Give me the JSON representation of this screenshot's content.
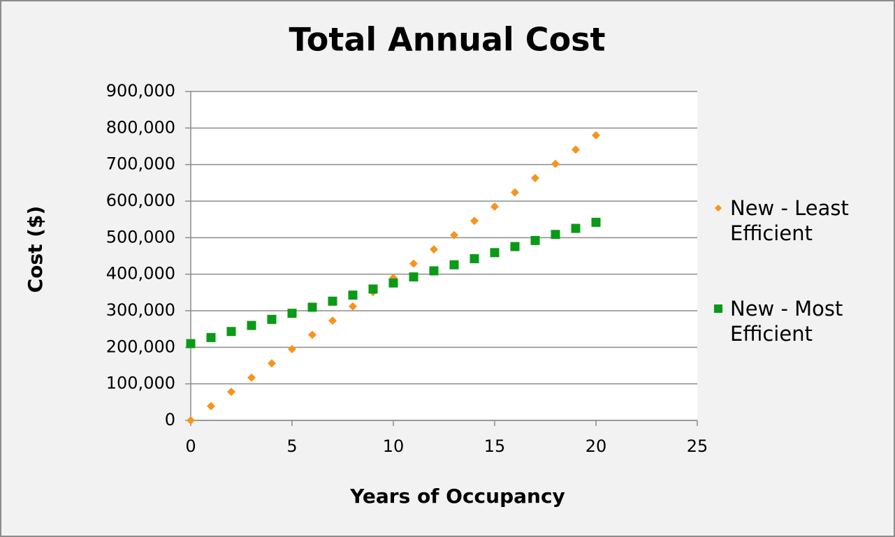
{
  "chart_data": {
    "type": "scatter",
    "title": "Total Annual Cost",
    "xlabel": "Years of Occupancy",
    "ylabel": "Cost ($)",
    "x": [
      0,
      1,
      2,
      3,
      4,
      5,
      6,
      7,
      8,
      9,
      10,
      11,
      12,
      13,
      14,
      15,
      16,
      17,
      18,
      19,
      20
    ],
    "series": [
      {
        "name": "New - Least Efficient",
        "color": "#f7941d",
        "marker": "diamond",
        "values": [
          0,
          39000,
          78000,
          117000,
          156000,
          195000,
          234000,
          273000,
          312000,
          351000,
          390000,
          429000,
          468000,
          507000,
          546000,
          585000,
          624000,
          663000,
          702000,
          741000,
          780000
        ]
      },
      {
        "name": "New - Most Efficient",
        "color": "#0b9a17",
        "marker": "square",
        "values": [
          210000,
          226600,
          243200,
          259800,
          276400,
          293000,
          309600,
          326200,
          342800,
          359400,
          376000,
          392600,
          409200,
          425800,
          442400,
          459000,
          475600,
          492200,
          508800,
          525400,
          542000
        ]
      }
    ],
    "xlim": [
      0,
      25
    ],
    "xticks": [
      0,
      5,
      10,
      15,
      20,
      25
    ],
    "ylim": [
      0,
      900000
    ],
    "yticks": [
      0,
      {
        "value": 100000,
        "label": "100,000"
      },
      {
        "value": 200000,
        "label": "200,000"
      },
      {
        "value": 300000,
        "label": "300,000"
      },
      {
        "value": 400000,
        "label": "400,000"
      },
      {
        "value": 500000,
        "label": "500,000"
      },
      {
        "value": 600000,
        "label": "600,000"
      },
      {
        "value": 700000,
        "label": "700,000"
      },
      {
        "value": 800000,
        "label": "800,000"
      },
      {
        "value": 900000,
        "label": "900,000"
      }
    ],
    "grid": true,
    "legend": "right"
  }
}
